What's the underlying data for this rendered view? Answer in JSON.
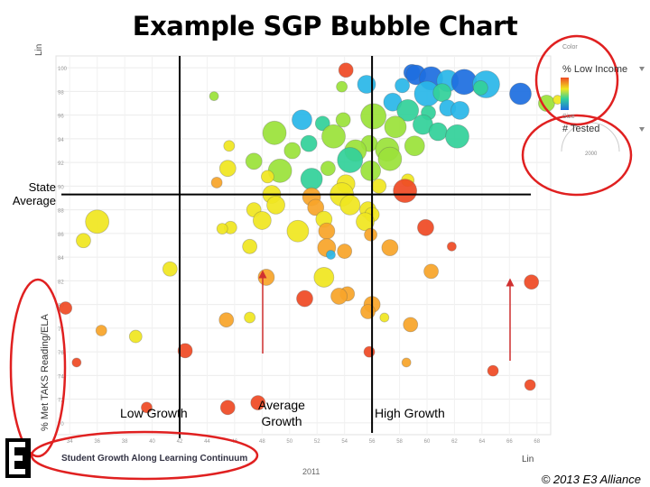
{
  "title": "Example SGP Bubble Chart",
  "annotations": {
    "state_average": "State Average",
    "low_growth": "Low Growth",
    "average_growth": "Average Growth",
    "high_growth": "High Growth",
    "copyright": "© 2013 E3 Alliance"
  },
  "chart_controls": {
    "color_label": "Color",
    "color_field": "% Low Income",
    "size_label": "Size",
    "size_field": "# Tested",
    "size_max": "2000",
    "y_scale": "Lin",
    "x_scale": "Lin",
    "x_axis_title": "Student Growth Along Learning Continuum",
    "y_axis_title": "% Met TAKS Reading/ELA",
    "year": "2011"
  },
  "colors": {
    "reference_line": "#000000",
    "highlight_circle": "#e02020",
    "arrow": "#d03030",
    "low_income_scale": [
      "#1e6fe0",
      "#2ab7e8",
      "#33d19a",
      "#9be23a",
      "#f0e620",
      "#f7a52a",
      "#ef4a25"
    ]
  },
  "chart_data": {
    "type": "scatter",
    "title": "",
    "xlabel": "Student Growth Along Learning Continuum",
    "ylabel": "% Met TAKS Reading/ELA",
    "x_ticks": [
      "34",
      "36",
      "38",
      "40",
      "42",
      "44",
      "46",
      "48",
      "50",
      "52",
      "54",
      "56",
      "58",
      "60",
      "62",
      "64",
      "66",
      "68"
    ],
    "y_ticks": [
      "100",
      "98",
      "96",
      "94",
      "92",
      "90",
      "88",
      "86",
      "84",
      "82",
      "80",
      "78",
      "76",
      "74",
      "72",
      "70"
    ],
    "xlim": [
      33,
      69
    ],
    "ylim": [
      69,
      101
    ],
    "reference_lines": {
      "state_average_y": 89.3,
      "x_low_average": 42,
      "x_average_high": 56
    },
    "bubble_encoding": {
      "color": "% Low Income",
      "size": "# Tested"
    },
    "points": [
      {
        "x": 54.1,
        "y": 99.8,
        "r": 8,
        "c": 6
      },
      {
        "x": 58.9,
        "y": 99.6,
        "r": 9,
        "c": 0
      },
      {
        "x": 59.2,
        "y": 99.4,
        "r": 11,
        "c": 0
      },
      {
        "x": 60.3,
        "y": 99.1,
        "r": 13,
        "c": 0
      },
      {
        "x": 61.5,
        "y": 98.9,
        "r": 12,
        "c": 1
      },
      {
        "x": 62.7,
        "y": 98.8,
        "r": 14,
        "c": 0
      },
      {
        "x": 64.3,
        "y": 98.6,
        "r": 15,
        "c": 1
      },
      {
        "x": 58.2,
        "y": 98.5,
        "r": 8,
        "c": 1
      },
      {
        "x": 55.6,
        "y": 98.6,
        "r": 10,
        "c": 1
      },
      {
        "x": 53.8,
        "y": 98.4,
        "r": 6,
        "c": 3
      },
      {
        "x": 60.0,
        "y": 97.8,
        "r": 14,
        "c": 1
      },
      {
        "x": 61.1,
        "y": 97.9,
        "r": 10,
        "c": 2
      },
      {
        "x": 63.9,
        "y": 98.3,
        "r": 8,
        "c": 2
      },
      {
        "x": 66.8,
        "y": 97.8,
        "r": 12,
        "c": 0
      },
      {
        "x": 68.7,
        "y": 97.0,
        "r": 9,
        "c": 3
      },
      {
        "x": 69.5,
        "y": 97.3,
        "r": 5,
        "c": 4
      },
      {
        "x": 57.5,
        "y": 97.1,
        "r": 10,
        "c": 1
      },
      {
        "x": 58.6,
        "y": 96.4,
        "r": 12,
        "c": 2
      },
      {
        "x": 60.1,
        "y": 96.2,
        "r": 8,
        "c": 2
      },
      {
        "x": 61.5,
        "y": 96.6,
        "r": 9,
        "c": 1
      },
      {
        "x": 62.4,
        "y": 96.4,
        "r": 10,
        "c": 1
      },
      {
        "x": 59.7,
        "y": 95.2,
        "r": 11,
        "c": 2
      },
      {
        "x": 56.1,
        "y": 95.9,
        "r": 14,
        "c": 3
      },
      {
        "x": 57.7,
        "y": 95.0,
        "r": 12,
        "c": 3
      },
      {
        "x": 60.8,
        "y": 94.6,
        "r": 10,
        "c": 2
      },
      {
        "x": 62.2,
        "y": 94.2,
        "r": 13,
        "c": 2
      },
      {
        "x": 50.9,
        "y": 95.6,
        "r": 11,
        "c": 1
      },
      {
        "x": 53.9,
        "y": 95.6,
        "r": 8,
        "c": 3
      },
      {
        "x": 52.4,
        "y": 95.3,
        "r": 8,
        "c": 2
      },
      {
        "x": 48.9,
        "y": 94.5,
        "r": 13,
        "c": 3
      },
      {
        "x": 53.2,
        "y": 94.2,
        "r": 13,
        "c": 3
      },
      {
        "x": 55.8,
        "y": 93.6,
        "r": 9,
        "c": 3
      },
      {
        "x": 57.1,
        "y": 93.1,
        "r": 13,
        "c": 3
      },
      {
        "x": 59.1,
        "y": 93.4,
        "r": 11,
        "c": 3
      },
      {
        "x": 51.4,
        "y": 93.6,
        "r": 9,
        "c": 2
      },
      {
        "x": 54.8,
        "y": 93.0,
        "r": 12,
        "c": 3
      },
      {
        "x": 50.2,
        "y": 93.0,
        "r": 9,
        "c": 3
      },
      {
        "x": 54.4,
        "y": 92.2,
        "r": 14,
        "c": 2
      },
      {
        "x": 57.3,
        "y": 92.3,
        "r": 13,
        "c": 3
      },
      {
        "x": 55.9,
        "y": 91.3,
        "r": 11,
        "c": 3
      },
      {
        "x": 52.8,
        "y": 91.5,
        "r": 8,
        "c": 3
      },
      {
        "x": 49.3,
        "y": 91.3,
        "r": 13,
        "c": 3
      },
      {
        "x": 51.6,
        "y": 90.6,
        "r": 12,
        "c": 2
      },
      {
        "x": 54.1,
        "y": 90.2,
        "r": 10,
        "c": 4
      },
      {
        "x": 56.5,
        "y": 90.0,
        "r": 8,
        "c": 4
      },
      {
        "x": 47.4,
        "y": 92.1,
        "r": 9,
        "c": 3
      },
      {
        "x": 45.6,
        "y": 93.4,
        "r": 6,
        "c": 4
      },
      {
        "x": 48.4,
        "y": 90.8,
        "r": 7,
        "c": 4
      },
      {
        "x": 45.5,
        "y": 91.5,
        "r": 9,
        "c": 4
      },
      {
        "x": 48.7,
        "y": 89.3,
        "r": 10,
        "c": 4
      },
      {
        "x": 44.5,
        "y": 97.6,
        "r": 5,
        "c": 3
      },
      {
        "x": 44.7,
        "y": 90.3,
        "r": 6,
        "c": 5
      },
      {
        "x": 58.6,
        "y": 90.5,
        "r": 7,
        "c": 4
      },
      {
        "x": 58.4,
        "y": 89.6,
        "r": 13,
        "c": 6
      },
      {
        "x": 51.6,
        "y": 89.1,
        "r": 10,
        "c": 5
      },
      {
        "x": 53.8,
        "y": 89.3,
        "r": 13,
        "c": 4
      },
      {
        "x": 54.4,
        "y": 88.4,
        "r": 11,
        "c": 4
      },
      {
        "x": 51.9,
        "y": 88.2,
        "r": 9,
        "c": 5
      },
      {
        "x": 49.0,
        "y": 88.4,
        "r": 10,
        "c": 4
      },
      {
        "x": 55.7,
        "y": 88.0,
        "r": 9,
        "c": 4
      },
      {
        "x": 56.0,
        "y": 87.6,
        "r": 8,
        "c": 4
      },
      {
        "x": 52.5,
        "y": 87.2,
        "r": 9,
        "c": 4
      },
      {
        "x": 55.5,
        "y": 87.0,
        "r": 10,
        "c": 4
      },
      {
        "x": 47.4,
        "y": 88.0,
        "r": 8,
        "c": 4
      },
      {
        "x": 48.0,
        "y": 87.1,
        "r": 10,
        "c": 4
      },
      {
        "x": 36.0,
        "y": 87.0,
        "r": 13,
        "c": 4
      },
      {
        "x": 45.7,
        "y": 86.5,
        "r": 7,
        "c": 4
      },
      {
        "x": 45.1,
        "y": 86.4,
        "r": 6,
        "c": 4
      },
      {
        "x": 50.6,
        "y": 86.2,
        "r": 12,
        "c": 4
      },
      {
        "x": 52.7,
        "y": 86.2,
        "r": 9,
        "c": 5
      },
      {
        "x": 55.9,
        "y": 85.9,
        "r": 7,
        "c": 5
      },
      {
        "x": 59.9,
        "y": 86.5,
        "r": 9,
        "c": 6
      },
      {
        "x": 35.0,
        "y": 85.4,
        "r": 8,
        "c": 4
      },
      {
        "x": 47.1,
        "y": 84.9,
        "r": 8,
        "c": 4
      },
      {
        "x": 52.7,
        "y": 84.8,
        "r": 10,
        "c": 5
      },
      {
        "x": 54.0,
        "y": 84.5,
        "r": 8,
        "c": 5
      },
      {
        "x": 57.3,
        "y": 84.8,
        "r": 9,
        "c": 5
      },
      {
        "x": 61.8,
        "y": 84.9,
        "r": 5,
        "c": 6
      },
      {
        "x": 53.0,
        "y": 84.2,
        "r": 5,
        "c": 1
      },
      {
        "x": 41.3,
        "y": 83.0,
        "r": 8,
        "c": 4
      },
      {
        "x": 48.3,
        "y": 82.3,
        "r": 9,
        "c": 5
      },
      {
        "x": 52.5,
        "y": 82.3,
        "r": 11,
        "c": 4
      },
      {
        "x": 60.3,
        "y": 82.8,
        "r": 8,
        "c": 5
      },
      {
        "x": 67.6,
        "y": 81.9,
        "r": 8,
        "c": 6
      },
      {
        "x": 54.2,
        "y": 80.9,
        "r": 8,
        "c": 5
      },
      {
        "x": 51.1,
        "y": 80.5,
        "r": 9,
        "c": 6
      },
      {
        "x": 53.6,
        "y": 80.7,
        "r": 9,
        "c": 5
      },
      {
        "x": 56.0,
        "y": 80.0,
        "r": 9,
        "c": 5
      },
      {
        "x": 33.7,
        "y": 79.7,
        "r": 7,
        "c": 6
      },
      {
        "x": 55.7,
        "y": 79.4,
        "r": 8,
        "c": 5
      },
      {
        "x": 47.1,
        "y": 78.9,
        "r": 6,
        "c": 4
      },
      {
        "x": 58.8,
        "y": 78.3,
        "r": 8,
        "c": 5
      },
      {
        "x": 56.9,
        "y": 78.9,
        "r": 5,
        "c": 4
      },
      {
        "x": 45.4,
        "y": 78.7,
        "r": 8,
        "c": 5
      },
      {
        "x": 36.3,
        "y": 77.8,
        "r": 6,
        "c": 5
      },
      {
        "x": 38.8,
        "y": 77.3,
        "r": 7,
        "c": 4
      },
      {
        "x": 42.4,
        "y": 76.1,
        "r": 8,
        "c": 6
      },
      {
        "x": 55.8,
        "y": 76.0,
        "r": 6,
        "c": 6
      },
      {
        "x": 34.5,
        "y": 75.1,
        "r": 5,
        "c": 6
      },
      {
        "x": 58.5,
        "y": 75.1,
        "r": 5,
        "c": 5
      },
      {
        "x": 67.5,
        "y": 73.2,
        "r": 6,
        "c": 6
      },
      {
        "x": 64.8,
        "y": 74.4,
        "r": 6,
        "c": 6
      },
      {
        "x": 47.7,
        "y": 71.7,
        "r": 8,
        "c": 6
      },
      {
        "x": 45.5,
        "y": 71.3,
        "r": 8,
        "c": 6
      },
      {
        "x": 39.6,
        "y": 71.3,
        "r": 6,
        "c": 6
      }
    ]
  }
}
